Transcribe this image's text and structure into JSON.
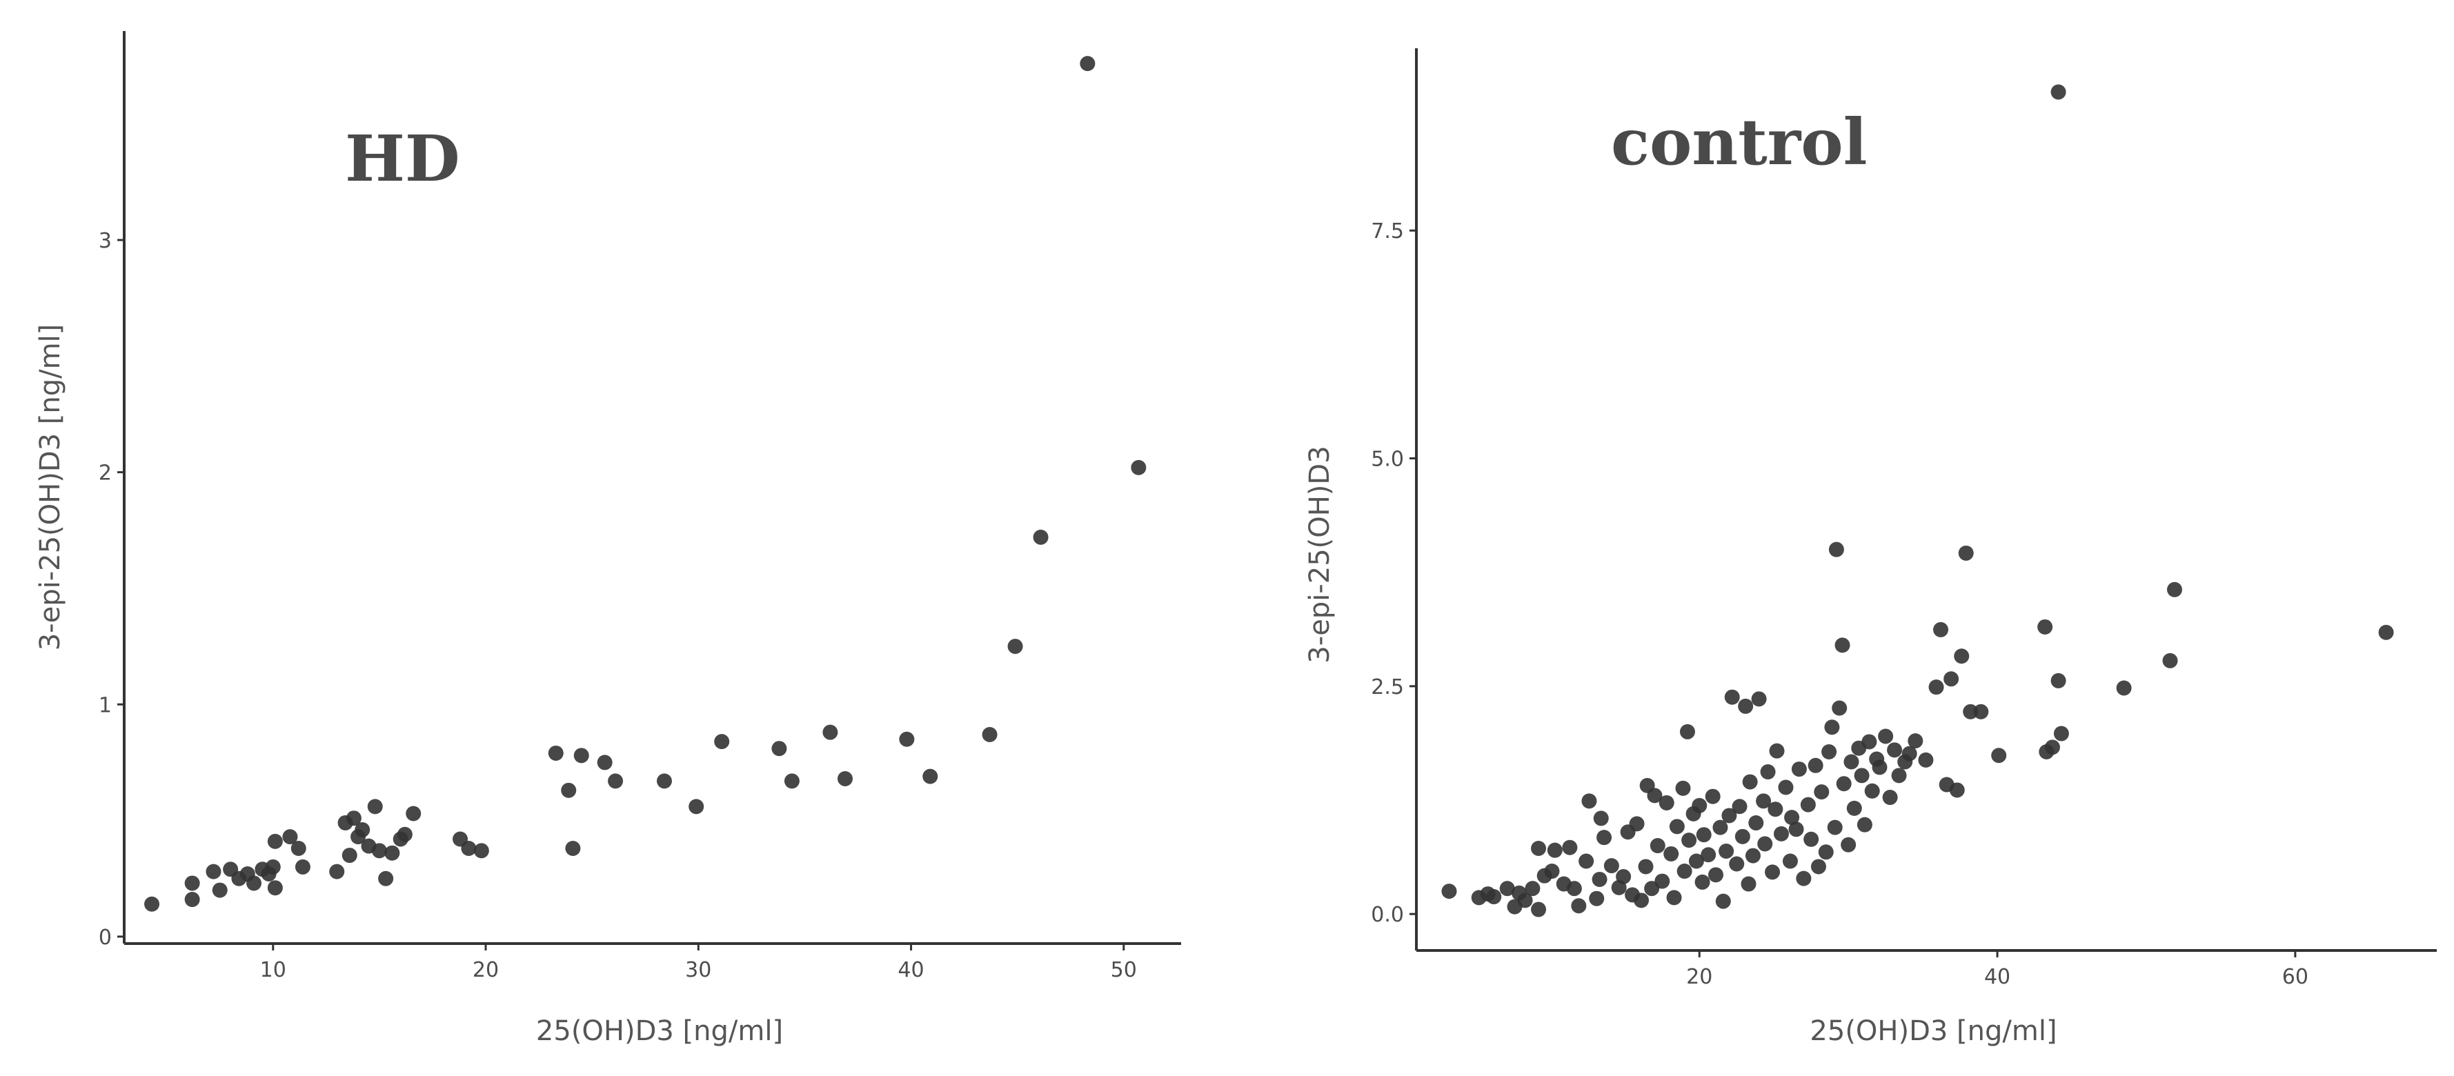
{
  "chart_data": [
    {
      "type": "scatter",
      "title": "HD",
      "xlabel": "25(OH)D3 [ng/ml]",
      "ylabel": "3-epi-25(OH)D3 [ng/ml]",
      "xlim": [
        3,
        52.7
      ],
      "ylim": [
        -0.03,
        3.9
      ],
      "xticks": [
        "10",
        "20",
        "30",
        "40",
        "50"
      ],
      "yticks": [
        "0",
        "1",
        "2",
        "3"
      ],
      "grid": false,
      "points": [
        [
          4.3,
          0.14
        ],
        [
          6.2,
          0.23
        ],
        [
          6.2,
          0.16
        ],
        [
          7.2,
          0.28
        ],
        [
          7.5,
          0.2
        ],
        [
          8.0,
          0.29
        ],
        [
          8.4,
          0.25
        ],
        [
          8.8,
          0.27
        ],
        [
          9.1,
          0.23
        ],
        [
          9.5,
          0.29
        ],
        [
          9.8,
          0.27
        ],
        [
          10.0,
          0.3
        ],
        [
          10.1,
          0.21
        ],
        [
          10.1,
          0.41
        ],
        [
          10.8,
          0.43
        ],
        [
          11.2,
          0.38
        ],
        [
          11.4,
          0.3
        ],
        [
          13.0,
          0.28
        ],
        [
          13.4,
          0.49
        ],
        [
          13.6,
          0.35
        ],
        [
          13.8,
          0.51
        ],
        [
          14.0,
          0.43
        ],
        [
          14.2,
          0.46
        ],
        [
          14.5,
          0.39
        ],
        [
          14.8,
          0.56
        ],
        [
          15.0,
          0.37
        ],
        [
          15.3,
          0.25
        ],
        [
          15.6,
          0.36
        ],
        [
          16.0,
          0.42
        ],
        [
          16.2,
          0.44
        ],
        [
          16.6,
          0.53
        ],
        [
          18.8,
          0.42
        ],
        [
          19.2,
          0.38
        ],
        [
          19.8,
          0.37
        ],
        [
          23.3,
          0.79
        ],
        [
          23.9,
          0.63
        ],
        [
          24.1,
          0.38
        ],
        [
          24.5,
          0.78
        ],
        [
          25.6,
          0.75
        ],
        [
          26.1,
          0.67
        ],
        [
          28.4,
          0.67
        ],
        [
          29.9,
          0.56
        ],
        [
          31.1,
          0.84
        ],
        [
          33.8,
          0.81
        ],
        [
          34.4,
          0.67
        ],
        [
          36.2,
          0.88
        ],
        [
          36.9,
          0.68
        ],
        [
          39.8,
          0.85
        ],
        [
          40.9,
          0.69
        ],
        [
          43.7,
          0.87
        ],
        [
          44.9,
          1.25
        ],
        [
          46.1,
          1.72
        ],
        [
          48.3,
          3.76
        ],
        [
          50.7,
          2.02
        ]
      ]
    },
    {
      "type": "scatter",
      "title": "control",
      "xlabel": "25(OH)D3 [ng/ml]",
      "ylabel": "3-epi-25(OH)D3",
      "xlim": [
        1,
        69.5
      ],
      "ylim": [
        -0.4,
        9.5
      ],
      "xticks": [
        "20",
        "40",
        "60"
      ],
      "yticks": [
        "0.0",
        "2.5",
        "5.0",
        "7.5"
      ],
      "grid": false,
      "points": [
        [
          3.2,
          0.25
        ],
        [
          5.2,
          0.18
        ],
        [
          5.8,
          0.22
        ],
        [
          6.2,
          0.19
        ],
        [
          7.1,
          0.28
        ],
        [
          7.6,
          0.08
        ],
        [
          7.9,
          0.23
        ],
        [
          8.3,
          0.15
        ],
        [
          8.8,
          0.28
        ],
        [
          9.2,
          0.72
        ],
        [
          9.2,
          0.05
        ],
        [
          9.6,
          0.42
        ],
        [
          10.1,
          0.47
        ],
        [
          10.3,
          0.7
        ],
        [
          10.9,
          0.33
        ],
        [
          11.3,
          0.73
        ],
        [
          11.6,
          0.28
        ],
        [
          11.9,
          0.09
        ],
        [
          12.4,
          0.58
        ],
        [
          12.6,
          1.24
        ],
        [
          13.1,
          0.17
        ],
        [
          13.3,
          0.38
        ],
        [
          13.4,
          1.05
        ],
        [
          13.6,
          0.84
        ],
        [
          14.1,
          0.53
        ],
        [
          14.6,
          0.29
        ],
        [
          14.9,
          0.41
        ],
        [
          15.2,
          0.9
        ],
        [
          15.5,
          0.21
        ],
        [
          15.8,
          0.99
        ],
        [
          16.1,
          0.15
        ],
        [
          16.4,
          0.52
        ],
        [
          16.5,
          1.41
        ],
        [
          16.8,
          0.28
        ],
        [
          17.0,
          1.3
        ],
        [
          17.2,
          0.75
        ],
        [
          17.5,
          0.36
        ],
        [
          17.8,
          1.22
        ],
        [
          18.1,
          0.66
        ],
        [
          18.3,
          0.18
        ],
        [
          18.5,
          0.96
        ],
        [
          18.9,
          1.38
        ],
        [
          19.0,
          0.47
        ],
        [
          19.2,
          2.0
        ],
        [
          19.3,
          0.81
        ],
        [
          19.6,
          1.1
        ],
        [
          19.8,
          0.58
        ],
        [
          20.0,
          1.19
        ],
        [
          20.2,
          0.35
        ],
        [
          20.3,
          0.87
        ],
        [
          20.6,
          0.65
        ],
        [
          20.9,
          1.29
        ],
        [
          21.1,
          0.43
        ],
        [
          21.4,
          0.95
        ],
        [
          21.6,
          0.14
        ],
        [
          21.8,
          0.69
        ],
        [
          22.0,
          1.08
        ],
        [
          22.2,
          2.38
        ],
        [
          22.5,
          0.55
        ],
        [
          22.7,
          1.18
        ],
        [
          22.9,
          0.85
        ],
        [
          23.1,
          2.28
        ],
        [
          23.3,
          0.33
        ],
        [
          23.4,
          1.45
        ],
        [
          23.6,
          0.64
        ],
        [
          23.8,
          1.0
        ],
        [
          24.0,
          2.36
        ],
        [
          24.3,
          1.24
        ],
        [
          24.4,
          0.77
        ],
        [
          24.6,
          1.56
        ],
        [
          24.9,
          0.46
        ],
        [
          25.1,
          1.15
        ],
        [
          25.2,
          1.79
        ],
        [
          25.5,
          0.88
        ],
        [
          25.8,
          1.39
        ],
        [
          26.1,
          0.58
        ],
        [
          26.2,
          1.06
        ],
        [
          26.5,
          0.93
        ],
        [
          26.7,
          1.59
        ],
        [
          27.0,
          0.39
        ],
        [
          27.3,
          1.2
        ],
        [
          27.5,
          0.82
        ],
        [
          27.8,
          1.63
        ],
        [
          28.0,
          0.52
        ],
        [
          28.2,
          1.34
        ],
        [
          28.5,
          0.68
        ],
        [
          28.7,
          1.78
        ],
        [
          28.9,
          2.05
        ],
        [
          29.1,
          0.95
        ],
        [
          29.2,
          4.0
        ],
        [
          29.4,
          2.26
        ],
        [
          29.6,
          2.95
        ],
        [
          29.7,
          1.43
        ],
        [
          30.0,
          0.76
        ],
        [
          30.2,
          1.67
        ],
        [
          30.4,
          1.16
        ],
        [
          30.7,
          1.82
        ],
        [
          30.9,
          1.52
        ],
        [
          31.1,
          0.98
        ],
        [
          31.4,
          1.89
        ],
        [
          31.6,
          1.35
        ],
        [
          31.9,
          1.7
        ],
        [
          32.1,
          1.61
        ],
        [
          32.5,
          1.95
        ],
        [
          32.8,
          1.28
        ],
        [
          33.1,
          1.8
        ],
        [
          33.4,
          1.52
        ],
        [
          33.8,
          1.67
        ],
        [
          34.1,
          1.76
        ],
        [
          34.5,
          1.9
        ],
        [
          35.2,
          1.69
        ],
        [
          35.9,
          2.49
        ],
        [
          36.2,
          3.12
        ],
        [
          36.6,
          1.42
        ],
        [
          36.9,
          2.58
        ],
        [
          37.3,
          1.36
        ],
        [
          37.6,
          2.83
        ],
        [
          37.9,
          3.96
        ],
        [
          38.2,
          2.22
        ],
        [
          38.9,
          2.22
        ],
        [
          40.1,
          1.74
        ],
        [
          43.3,
          1.78
        ],
        [
          43.2,
          3.15
        ],
        [
          43.7,
          1.83
        ],
        [
          44.1,
          2.56
        ],
        [
          44.3,
          1.98
        ],
        [
          44.1,
          9.02
        ],
        [
          48.5,
          2.48
        ],
        [
          51.6,
          2.78
        ],
        [
          51.9,
          3.56
        ],
        [
          66.1,
          3.09
        ]
      ]
    }
  ]
}
